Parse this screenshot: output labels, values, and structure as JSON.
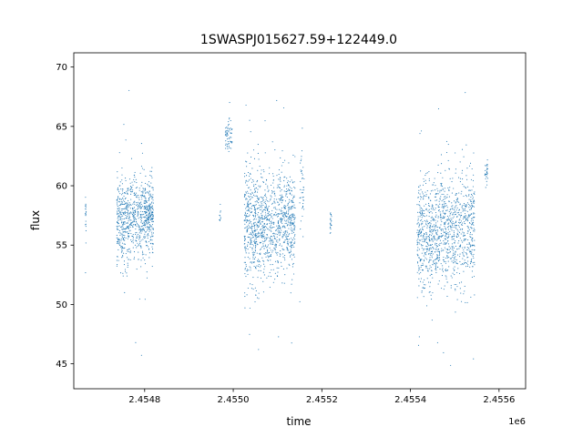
{
  "chart_data": {
    "type": "scatter",
    "title": "1SWASPJ015627.59+122449.0",
    "xlabel": "time",
    "ylabel": "flux",
    "x_offset_label": "1e6",
    "xlim": [
      2454640,
      2455660
    ],
    "ylim": [
      42.9,
      71.2
    ],
    "xticks": [
      2454800,
      2455000,
      2455200,
      2455400,
      2455600
    ],
    "xtick_labels": [
      "2.4548",
      "2.4550",
      "2.4552",
      "2.4554",
      "2.4556"
    ],
    "yticks": [
      45,
      50,
      55,
      60,
      65,
      70
    ],
    "ytick_labels": [
      "45",
      "50",
      "55",
      "60",
      "65",
      "70"
    ],
    "grid": false,
    "marker_color": "#1f77b4",
    "clusters": [
      {
        "x_range": [
          2454666,
          2454668
        ],
        "y_center": 57.8,
        "spread": 1.0,
        "count": 20
      },
      {
        "x_range": [
          2454737,
          2454765
        ],
        "y_center": 57.0,
        "spread": 1.8,
        "count": 300
      },
      {
        "x_range": [
          2454765,
          2454800
        ],
        "y_center": 57.3,
        "spread": 1.7,
        "count": 300
      },
      {
        "x_range": [
          2454800,
          2454820
        ],
        "y_center": 57.4,
        "spread": 1.6,
        "count": 260
      },
      {
        "x_range": [
          2454968,
          2454972
        ],
        "y_center": 57.3,
        "spread": 0.5,
        "count": 10
      },
      {
        "x_range": [
          2454982,
          2454998
        ],
        "y_center": 64.2,
        "spread": 0.8,
        "count": 60
      },
      {
        "x_range": [
          2455025,
          2455060
        ],
        "y_center": 56.5,
        "spread": 2.4,
        "count": 400
      },
      {
        "x_range": [
          2455060,
          2455110
        ],
        "y_center": 56.8,
        "spread": 2.2,
        "count": 450
      },
      {
        "x_range": [
          2455110,
          2455140
        ],
        "y_center": 57.0,
        "spread": 2.0,
        "count": 300
      },
      {
        "x_range": [
          2455150,
          2455160
        ],
        "y_center": 59.5,
        "spread": 1.5,
        "count": 40
      },
      {
        "x_range": [
          2455218,
          2455222
        ],
        "y_center": 56.9,
        "spread": 0.5,
        "count": 20
      },
      {
        "x_range": [
          2455415,
          2455450
        ],
        "y_center": 55.8,
        "spread": 2.4,
        "count": 350
      },
      {
        "x_range": [
          2455450,
          2455500
        ],
        "y_center": 56.2,
        "spread": 2.3,
        "count": 450
      },
      {
        "x_range": [
          2455500,
          2455545
        ],
        "y_center": 56.5,
        "spread": 2.3,
        "count": 380
      },
      {
        "x_range": [
          2455568,
          2455575
        ],
        "y_center": 61.0,
        "spread": 0.6,
        "count": 30
      }
    ]
  }
}
